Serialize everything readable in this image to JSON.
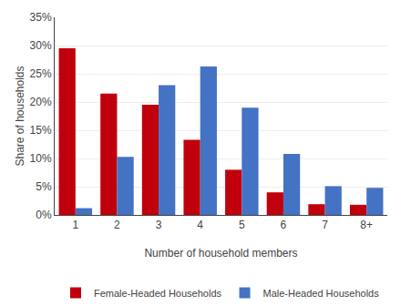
{
  "chart_data": {
    "type": "bar",
    "xlabel": "Number of household members",
    "ylabel": "Share of households",
    "categories": [
      "1",
      "2",
      "3",
      "4",
      "5",
      "6",
      "7",
      "8+"
    ],
    "series": [
      {
        "name": "Female-Headed Households",
        "color": "#C0000C",
        "values": [
          0.295,
          0.215,
          0.195,
          0.133,
          0.08,
          0.04,
          0.019,
          0.018
        ]
      },
      {
        "name": "Male-Headed Households",
        "color": "#4472C4",
        "values": [
          0.012,
          0.103,
          0.23,
          0.263,
          0.19,
          0.108,
          0.051,
          0.048
        ]
      }
    ],
    "ylim": [
      0,
      0.35
    ],
    "yticks": [
      {
        "value": 0,
        "label": "0%"
      },
      {
        "value": 0.05,
        "label": "5%"
      },
      {
        "value": 0.1,
        "label": "10%"
      },
      {
        "value": 0.15,
        "label": "15%"
      },
      {
        "value": 0.2,
        "label": "20%"
      },
      {
        "value": 0.25,
        "label": "25%"
      },
      {
        "value": 0.3,
        "label": "30%"
      },
      {
        "value": 0.35,
        "label": "35%"
      }
    ],
    "grid": true,
    "legend": "bottom"
  }
}
